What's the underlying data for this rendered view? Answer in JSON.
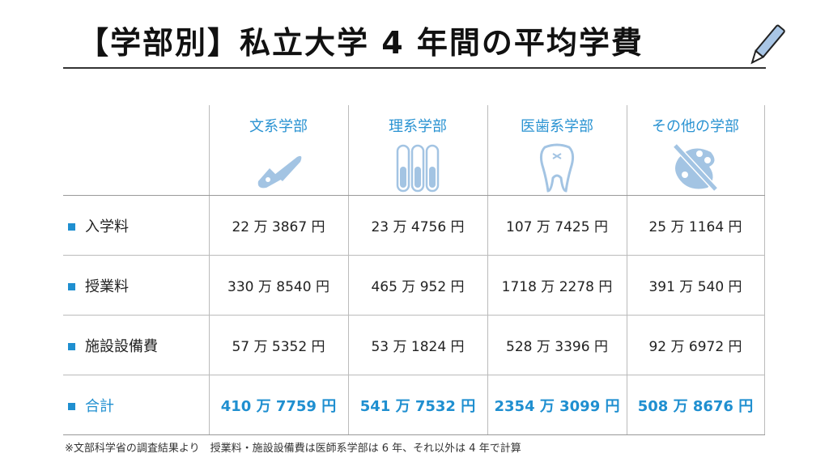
{
  "title": "【学部別】私立大学 4 年間の平均学費",
  "colors": {
    "accent": "#1f8fd0",
    "icon": "#a3c4e3"
  },
  "columns": [
    {
      "label": "文系学部",
      "icon": "fountain-pen-icon"
    },
    {
      "label": "理系学部",
      "icon": "test-tubes-icon"
    },
    {
      "label": "医歯系学部",
      "icon": "tooth-icon"
    },
    {
      "label": "その他の学部",
      "icon": "palette-icon"
    }
  ],
  "rows": [
    {
      "label": "入学料",
      "values": [
        "22 万 3867 円",
        "23 万 4756 円",
        "107 万 7425 円",
        "25 万 1164 円"
      ]
    },
    {
      "label": "授業料",
      "values": [
        "330 万 8540 円",
        "465 万 952 円",
        "1718 万 2278 円",
        "391 万 540 円"
      ]
    },
    {
      "label": "施設設備費",
      "values": [
        "57 万 5352 円",
        "53 万 1824 円",
        "528 万 3396 円",
        "92 万 6972 円"
      ]
    },
    {
      "label": "合計",
      "values": [
        "410 万 7759 円",
        "541 万 7532 円",
        "2354 万 3099 円",
        "508 万 8676 円"
      ]
    }
  ],
  "note": "※文部科学省の調査結果より　授業料・施設設備費は医師系学部は 6 年、それ以外は 4 年で計算"
}
